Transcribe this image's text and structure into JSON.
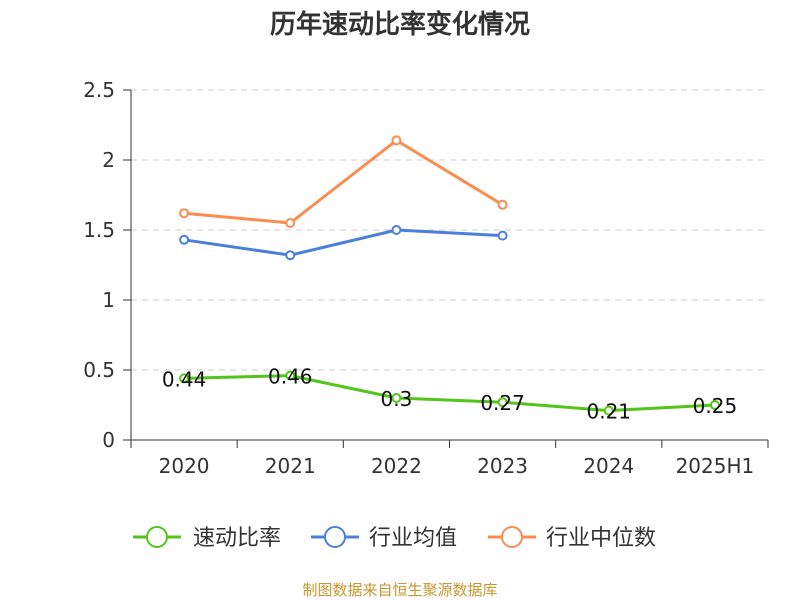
{
  "colors": {
    "speed": "#52c41a",
    "avg": "#4a7fdc",
    "median": "#fa8c50",
    "footer": "#c8962d",
    "axis": "#333333",
    "grid": "#cccccc"
  },
  "footer": "制图数据来自恒生聚源数据库",
  "chart_data": {
    "type": "line",
    "title": "历年速动比率变化情况",
    "categories": [
      "2020",
      "2021",
      "2022",
      "2023",
      "2024",
      "2025H1"
    ],
    "ylim": [
      0,
      2.5
    ],
    "yticks": [
      0,
      0.5,
      1,
      1.5,
      2,
      2.5
    ],
    "ytick_labels": [
      "0",
      "0.5",
      "1",
      "1.5",
      "2",
      "2.5"
    ],
    "grid": true,
    "legend_position": "bottom",
    "series": [
      {
        "name": "速动比率",
        "values": [
          0.44,
          0.46,
          0.3,
          0.27,
          0.21,
          0.25
        ],
        "labels": [
          "0.44",
          "0.46",
          "0.3",
          "0.27",
          "0.21",
          "0.25"
        ],
        "color_key": "speed"
      },
      {
        "name": "行业均值",
        "values": [
          1.43,
          1.32,
          1.5,
          1.46,
          null,
          null
        ],
        "color_key": "avg"
      },
      {
        "name": "行业中位数",
        "values": [
          1.62,
          1.55,
          2.14,
          1.68,
          null,
          null
        ],
        "color_key": "median"
      }
    ]
  }
}
